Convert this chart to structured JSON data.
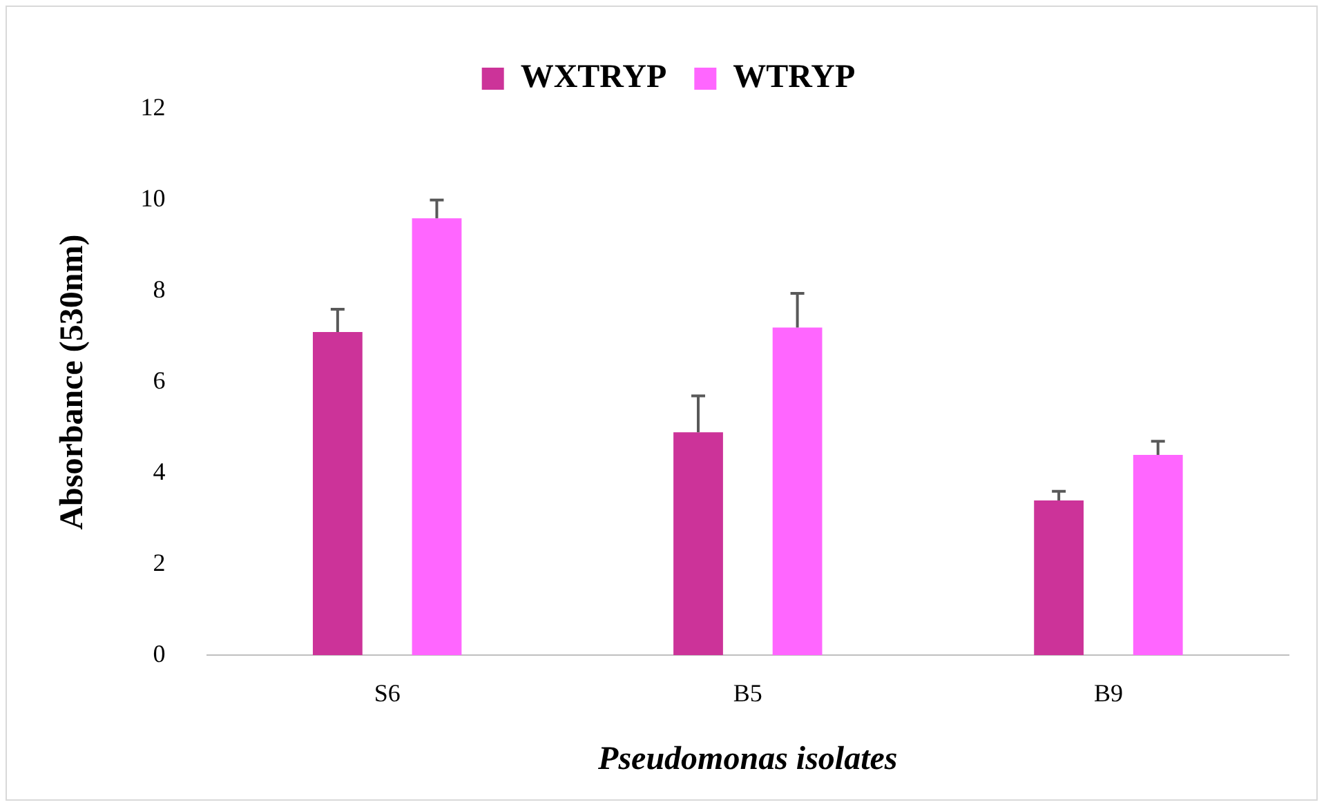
{
  "chart_data": {
    "type": "bar",
    "xlabel": "Pseudomonas isolates",
    "ylabel": "Absorbance (530nm)",
    "categories": [
      "S6",
      "B5",
      "B9"
    ],
    "series": [
      {
        "name": "WXTRYP",
        "color": "#cc3399",
        "values": [
          7.1,
          4.9,
          3.4
        ],
        "errors": [
          0.5,
          0.8,
          0.2
        ]
      },
      {
        "name": "WTRYP",
        "color": "#ff66ff",
        "values": [
          9.6,
          7.2,
          4.4
        ],
        "errors": [
          0.4,
          0.75,
          0.3
        ]
      }
    ],
    "ylim": [
      0,
      12
    ],
    "yticks": [
      0,
      2,
      4,
      6,
      8,
      10,
      12
    ],
    "grid": false,
    "legend": "top"
  }
}
